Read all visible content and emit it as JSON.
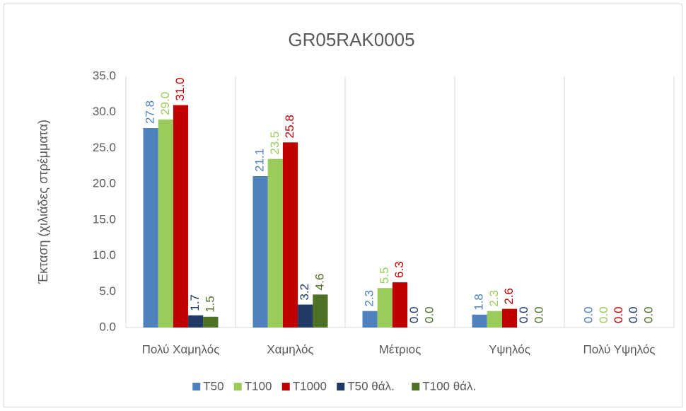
{
  "chart_data": {
    "type": "bar",
    "title": "GR05RAK0005",
    "y_label": "Έκταση (χιλιάδες στρέμματα)",
    "categories": [
      "Πολύ Χαμηλός",
      "Χαμηλός",
      "Μέτριος",
      "Υψηλός",
      "Πολύ Υψηλός"
    ],
    "series": [
      {
        "name": "T50",
        "color": "#4f81bd",
        "values": [
          27.8,
          21.1,
          2.3,
          1.8,
          0
        ],
        "value_labels": [
          "27.8",
          "21.1",
          "2.3",
          "1.8",
          "0.0"
        ]
      },
      {
        "name": "T100",
        "color": "#9bcb5b",
        "values": [
          29,
          23.5,
          5.5,
          2.3,
          0
        ],
        "value_labels": [
          "29.0",
          "23.5",
          "5.5",
          "2.3",
          "0.0"
        ]
      },
      {
        "name": "T1000",
        "color": "#c00000",
        "values": [
          31,
          25.8,
          6.3,
          2.6,
          0
        ],
        "value_labels": [
          "31.0",
          "25.8",
          "6.3",
          "2.6",
          "0.0"
        ]
      },
      {
        "name": "T50 θάλ.",
        "color": "#1f3864",
        "values": [
          1.7,
          3.2,
          0,
          0,
          0
        ],
        "value_labels": [
          "1.7",
          "3.2",
          "0.0",
          "0.0",
          "0.0"
        ]
      },
      {
        "name": "T100 θάλ.",
        "color": "#4e7127",
        "values": [
          1.5,
          4.6,
          0,
          0,
          0
        ],
        "value_labels": [
          "1.5",
          "4.6",
          "0.0",
          "0.0",
          "0.0"
        ]
      }
    ],
    "ylim": [
      0,
      35
    ],
    "yticks": [
      {
        "value": 0,
        "label": "0.0"
      },
      {
        "value": 5,
        "label": "5.0"
      },
      {
        "value": 10,
        "label": "10.0"
      },
      {
        "value": 15,
        "label": "15.0"
      },
      {
        "value": 20,
        "label": "20.0"
      },
      {
        "value": 25,
        "label": "25.0"
      },
      {
        "value": 30,
        "label": "30.0"
      },
      {
        "value": 35,
        "label": "35.0"
      }
    ],
    "grid": false,
    "legend": "bottom"
  }
}
